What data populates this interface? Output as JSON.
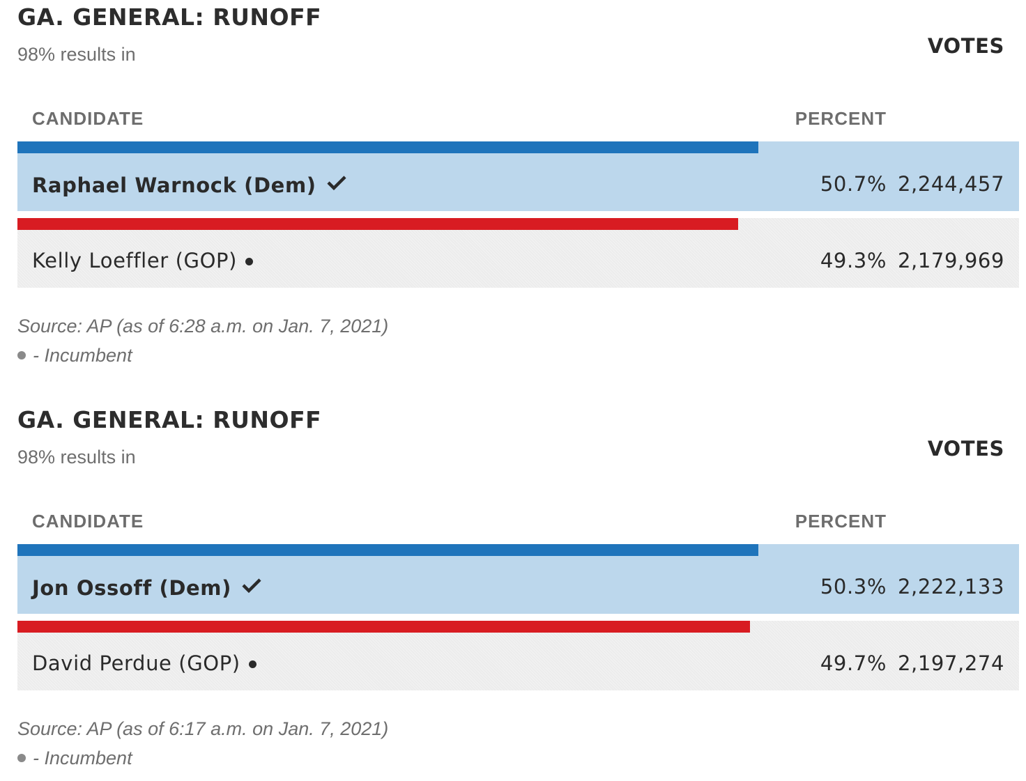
{
  "races": [
    {
      "title": "GA. GENERAL: RUNOFF",
      "results_in": "98% results in",
      "headers": {
        "candidate": "CANDIDATE",
        "percent": "PERCENT",
        "votes": "VOTES"
      },
      "candidates": [
        {
          "name": "Raphael Warnock (Dem)",
          "party": "Dem",
          "percent": "50.7%",
          "votes": "2,244,457",
          "winner": true,
          "incumbent": false
        },
        {
          "name": "Kelly Loeffler (GOP)",
          "party": "GOP",
          "percent": "49.3%",
          "votes": "2,179,969",
          "winner": false,
          "incumbent": true
        }
      ],
      "source": "Source: AP (as of 6:28 a.m. on Jan. 7, 2021)",
      "legend": "- Incumbent"
    },
    {
      "title": "GA. GENERAL: RUNOFF",
      "results_in": "98% results in",
      "headers": {
        "candidate": "CANDIDATE",
        "percent": "PERCENT",
        "votes": "VOTES"
      },
      "candidates": [
        {
          "name": "Jon Ossoff (Dem)",
          "party": "Dem",
          "percent": "50.3%",
          "votes": "2,222,133",
          "winner": true,
          "incumbent": false
        },
        {
          "name": "David Perdue (GOP)",
          "party": "GOP",
          "percent": "49.7%",
          "votes": "2,197,274",
          "winner": false,
          "incumbent": true
        }
      ],
      "source": "Source: AP (as of 6:17 a.m. on Jan. 7, 2021)",
      "legend": "- Incumbent"
    }
  ],
  "colors": {
    "dem_bar": "#1f74bb",
    "dem_row": "#bcd7ec",
    "gop_bar": "#d81c22",
    "gop_row": "#ececec"
  },
  "chart_data": [
    {
      "type": "bar",
      "title": "GA. GENERAL: RUNOFF",
      "categories": [
        "Raphael Warnock (Dem)",
        "Kelly Loeffler (GOP)"
      ],
      "values": [
        50.7,
        49.3
      ],
      "votes": [
        2244457,
        2179969
      ],
      "ylim": [
        0,
        100
      ]
    },
    {
      "type": "bar",
      "title": "GA. GENERAL: RUNOFF",
      "categories": [
        "Jon Ossoff (Dem)",
        "David Perdue (GOP)"
      ],
      "values": [
        50.3,
        49.7
      ],
      "votes": [
        2222133,
        2197274
      ],
      "ylim": [
        0,
        100
      ]
    }
  ]
}
